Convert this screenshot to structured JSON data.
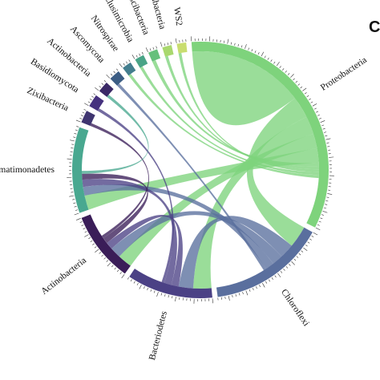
{
  "panel_letter": "C",
  "segments": [
    {
      "key": "proteobacteria",
      "label": "Proteobacteria",
      "color": "#7ed37c",
      "size": 34
    },
    {
      "key": "chloroflexi",
      "label": "Chloroflexi",
      "color": "#5a6f9e",
      "size": 15
    },
    {
      "key": "bacteriodetes",
      "label": "Bacteriodetes",
      "color": "#4b4185",
      "size": 11
    },
    {
      "key": "actinobacteria",
      "label": "Actinobacteria",
      "color": "#3a1d58",
      "size": 9
    },
    {
      "key": "gemmatimonadetes",
      "label": "Gemmatimonadetes",
      "color": "#49a890",
      "size": 11
    },
    {
      "key": "zixibacteria",
      "label": "Zixibacteria",
      "color": "#3f3570",
      "size": 1.6
    },
    {
      "key": "basidiomycota",
      "label": "Basidiomycota",
      "color": "#45317e",
      "size": 1.6
    },
    {
      "key": "actinobacteria-2",
      "label": "Actinobacteria",
      "color": "#3a2966",
      "size": 1.4
    },
    {
      "key": "ascomycota",
      "label": "Ascomycota",
      "color": "#3c5d84",
      "size": 1.4
    },
    {
      "key": "nitrospirae",
      "label": "Nitrospirae",
      "color": "#437e8e",
      "size": 1.2
    },
    {
      "key": "elusimicrobia",
      "label": "Elusimicrobia",
      "color": "#49a487",
      "size": 1.2
    },
    {
      "key": "patescibacteria",
      "label": "Patescibacteria",
      "color": "#66c07c",
      "size": 1.2
    },
    {
      "key": "dadabacteria",
      "label": "Dadabacteria",
      "color": "#a9d86e",
      "size": 1.2
    },
    {
      "key": "ws2",
      "label": "WS2",
      "color": "#c9dd70",
      "size": 1.2
    }
  ],
  "links": [
    {
      "source": "proteobacteria",
      "target": "proteobacteria",
      "value": 8
    },
    {
      "source": "proteobacteria",
      "target": "chloroflexi",
      "value": 3
    },
    {
      "source": "proteobacteria",
      "target": "bacteriodetes",
      "value": 2.5
    },
    {
      "source": "proteobacteria",
      "target": "actinobacteria",
      "value": 2
    },
    {
      "source": "proteobacteria",
      "target": "gemmatimonadetes",
      "value": 2
    },
    {
      "source": "proteobacteria",
      "target": "patescibacteria",
      "value": 0.5
    },
    {
      "source": "proteobacteria",
      "target": "dadabacteria",
      "value": 0.4
    },
    {
      "source": "proteobacteria",
      "target": "ws2",
      "value": 0.4
    },
    {
      "source": "proteobacteria",
      "target": "elusimicrobia",
      "value": 0.4
    },
    {
      "source": "proteobacteria",
      "target": "nitrospirae",
      "value": 0.4
    },
    {
      "source": "chloroflexi",
      "target": "bacteriodetes",
      "value": 2
    },
    {
      "source": "chloroflexi",
      "target": "actinobacteria",
      "value": 1.5
    },
    {
      "source": "chloroflexi",
      "target": "gemmatimonadetes",
      "value": 1.2
    },
    {
      "source": "chloroflexi",
      "target": "ascomycota",
      "value": 0.4
    },
    {
      "source": "bacteriodetes",
      "target": "actinobacteria",
      "value": 1
    },
    {
      "source": "bacteriodetes",
      "target": "gemmatimonadetes",
      "value": 1
    },
    {
      "source": "bacteriodetes",
      "target": "basidiomycota",
      "value": 0.4
    },
    {
      "source": "actinobacteria",
      "target": "gemmatimonadetes",
      "value": 0.8
    },
    {
      "source": "actinobacteria",
      "target": "zixibacteria",
      "value": 0.4
    },
    {
      "source": "gemmatimonadetes",
      "target": "actinobacteria-2",
      "value": 0.4
    }
  ]
}
